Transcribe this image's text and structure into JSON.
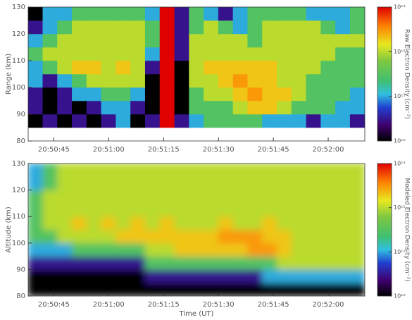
{
  "chart_data": [
    {
      "type": "heatmap",
      "ylabel": "Range (km)",
      "colorbar_label": "Raw Electron Density (cm⁻³)",
      "smooth": false,
      "log_color": true,
      "xlim": [
        75038,
        75130
      ],
      "xticks": [
        {
          "value": 75045,
          "label": "20:50:45"
        },
        {
          "value": 75060,
          "label": "20:51:00"
        },
        {
          "value": 75075,
          "label": "20:51:15"
        },
        {
          "value": 75090,
          "label": "20:51:30"
        },
        {
          "value": 75105,
          "label": "20:51:45"
        },
        {
          "value": 75120,
          "label": "20:52:00"
        }
      ],
      "ylim": [
        80,
        130
      ],
      "yticks": [
        80,
        90,
        100,
        110,
        120,
        130
      ],
      "zlim": [
        10000000000.0,
        10000000000000.0
      ],
      "zticks": [
        {
          "value": 10000000000.0,
          "label": "10¹⁰"
        },
        {
          "value": 100000000000.0,
          "label": "10¹¹"
        },
        {
          "value": 1000000000000.0,
          "label": "10¹²"
        },
        {
          "value": 10000000000000.0,
          "label": "10¹³"
        }
      ],
      "x_edges": [
        75038,
        75042,
        75046,
        75050,
        75054,
        75058,
        75062,
        75066,
        75070,
        75074,
        75078,
        75082,
        75086,
        75090,
        75094,
        75098,
        75102,
        75106,
        75110,
        75114,
        75118,
        75122,
        75126,
        75130
      ],
      "y_edges": [
        85,
        90,
        95,
        100,
        105,
        110,
        115,
        120,
        125,
        130
      ],
      "z": [
        [
          10000000000.0,
          30000000000.0,
          10000000000.0,
          30000000000.0,
          10000000000.0,
          30000000000.0,
          100000000000.0,
          10000000000.0,
          30000000000.0,
          10000000000000.0,
          30000000000.0,
          100000000000.0,
          300000000000.0,
          300000000000.0,
          300000000000.0,
          300000000000.0,
          100000000000.0,
          100000000000.0,
          100000000000.0,
          30000000000.0,
          100000000000.0,
          100000000000.0,
          30000000000.0
        ],
        [
          30000000000.0,
          10000000000.0,
          30000000000.0,
          10000000000.0,
          30000000000.0,
          100000000000.0,
          100000000000.0,
          30000000000.0,
          10000000000.0,
          10000000000000.0,
          10000000000.0,
          300000000000.0,
          300000000000.0,
          300000000000.0,
          1000000000000.0,
          2000000000000.0,
          2000000000000.0,
          1000000000000.0,
          300000000000.0,
          300000000000.0,
          300000000000.0,
          100000000000.0,
          100000000000.0
        ],
        [
          30000000000.0,
          10000000000.0,
          30000000000.0,
          100000000000.0,
          100000000000.0,
          300000000000.0,
          300000000000.0,
          100000000000.0,
          10000000000.0,
          10000000000000.0,
          10000000000.0,
          300000000000.0,
          1000000000000.0,
          1000000000000.0,
          2000000000000.0,
          3000000000000.0,
          2000000000000.0,
          2000000000000.0,
          1000000000000.0,
          300000000000.0,
          300000000000.0,
          300000000000.0,
          100000000000.0
        ],
        [
          100000000000.0,
          30000000000.0,
          100000000000.0,
          300000000000.0,
          1000000000000.0,
          1000000000000.0,
          1000000000000.0,
          1000000000000.0,
          10000000000.0,
          10000000000000.0,
          10000000000.0,
          1000000000000.0,
          1000000000000.0,
          2000000000000.0,
          3000000000000.0,
          2000000000000.0,
          2000000000000.0,
          1000000000000.0,
          1000000000000.0,
          300000000000.0,
          300000000000.0,
          300000000000.0,
          300000000000.0
        ],
        [
          100000000000.0,
          300000000000.0,
          1000000000000.0,
          2000000000000.0,
          2000000000000.0,
          1000000000000.0,
          2000000000000.0,
          1000000000000.0,
          30000000000.0,
          10000000000000.0,
          10000000000.0,
          1000000000000.0,
          2000000000000.0,
          2000000000000.0,
          2000000000000.0,
          2000000000000.0,
          2000000000000.0,
          1000000000000.0,
          1000000000000.0,
          1000000000000.0,
          300000000000.0,
          300000000000.0,
          300000000000.0
        ],
        [
          300000000000.0,
          1000000000000.0,
          1000000000000.0,
          1000000000000.0,
          1000000000000.0,
          1000000000000.0,
          1000000000000.0,
          1000000000000.0,
          100000000000.0,
          10000000000000.0,
          30000000000.0,
          1000000000000.0,
          1000000000000.0,
          1000000000000.0,
          1000000000000.0,
          1000000000000.0,
          1000000000000.0,
          1000000000000.0,
          1000000000000.0,
          1000000000000.0,
          1000000000000.0,
          300000000000.0,
          300000000000.0
        ],
        [
          100000000000.0,
          300000000000.0,
          1000000000000.0,
          1000000000000.0,
          1000000000000.0,
          1000000000000.0,
          1000000000000.0,
          1000000000000.0,
          300000000000.0,
          10000000000000.0,
          30000000000.0,
          1000000000000.0,
          1000000000000.0,
          1000000000000.0,
          1000000000000.0,
          300000000000.0,
          1000000000000.0,
          1000000000000.0,
          1000000000000.0,
          1000000000000.0,
          1000000000000.0,
          1000000000000.0,
          1000000000000.0
        ],
        [
          30000000000.0,
          100000000000.0,
          300000000000.0,
          1000000000000.0,
          1000000000000.0,
          1000000000000.0,
          1000000000000.0,
          1000000000000.0,
          300000000000.0,
          10000000000000.0,
          30000000000.0,
          300000000000.0,
          1000000000000.0,
          300000000000.0,
          100000000000.0,
          300000000000.0,
          1000000000000.0,
          1000000000000.0,
          1000000000000.0,
          1000000000000.0,
          300000000000.0,
          100000000000.0,
          300000000000.0
        ],
        [
          10000000000.0,
          100000000000.0,
          100000000000.0,
          300000000000.0,
          300000000000.0,
          300000000000.0,
          300000000000.0,
          300000000000.0,
          100000000000.0,
          10000000000000.0,
          30000000000.0,
          300000000000.0,
          100000000000.0,
          30000000000.0,
          100000000000.0,
          300000000000.0,
          300000000000.0,
          300000000000.0,
          300000000000.0,
          100000000000.0,
          100000000000.0,
          100000000000.0,
          300000000000.0
        ]
      ]
    },
    {
      "type": "heatmap",
      "xlabel": "Time (UT)",
      "ylabel": "Altitude (km)",
      "colorbar_label": "Modeled Electron Density (cm⁻³)",
      "smooth": true,
      "log_color": true,
      "xlim": [
        75038,
        75130
      ],
      "xticks": [
        {
          "value": 75045,
          "label": "20:50:45"
        },
        {
          "value": 75060,
          "label": "20:51:00"
        },
        {
          "value": 75075,
          "label": "20:51:15"
        },
        {
          "value": 75090,
          "label": "20:51:30"
        },
        {
          "value": 75105,
          "label": "20:51:45"
        },
        {
          "value": 75120,
          "label": "20:52:00"
        }
      ],
      "ylim": [
        80,
        130
      ],
      "yticks": [
        80,
        90,
        100,
        110,
        120,
        130
      ],
      "zlim": [
        10000000000.0,
        10000000000000.0
      ],
      "zticks": [
        {
          "value": 10000000000.0,
          "label": "10¹⁰"
        },
        {
          "value": 100000000000.0,
          "label": "10¹¹"
        },
        {
          "value": 1000000000000.0,
          "label": "10¹²"
        },
        {
          "value": 10000000000000.0,
          "label": "10¹³"
        }
      ],
      "x_edges": [
        75038,
        75042,
        75046,
        75050,
        75054,
        75058,
        75062,
        75066,
        75070,
        75074,
        75078,
        75082,
        75086,
        75090,
        75094,
        75098,
        75102,
        75106,
        75110,
        75114,
        75118,
        75122,
        75126,
        75130
      ],
      "y_edges": [
        80,
        85,
        90,
        95,
        100,
        105,
        110,
        115,
        120,
        125,
        130
      ],
      "z": [
        [
          10000000000.0,
          10000000000.0,
          10000000000.0,
          10000000000.0,
          10000000000.0,
          10000000000.0,
          10000000000.0,
          10000000000.0,
          10000000000.0,
          10000000000.0,
          10000000000.0,
          10000000000.0,
          10000000000.0,
          10000000000.0,
          10000000000.0,
          10000000000.0,
          10000000000.0,
          10000000000.0,
          10000000000.0,
          10000000000.0,
          10000000000.0,
          10000000000.0,
          10000000000.0
        ],
        [
          10000000000.0,
          10000000000.0,
          10000000000.0,
          10000000000.0,
          10000000000.0,
          10000000000.0,
          10000000000.0,
          10000000000.0,
          30000000000.0,
          30000000000.0,
          30000000000.0,
          30000000000.0,
          30000000000.0,
          30000000000.0,
          30000000000.0,
          30000000000.0,
          100000000000.0,
          100000000000.0,
          100000000000.0,
          100000000000.0,
          100000000000.0,
          100000000000.0,
          100000000000.0
        ],
        [
          30000000000.0,
          30000000000.0,
          30000000000.0,
          30000000000.0,
          30000000000.0,
          30000000000.0,
          30000000000.0,
          30000000000.0,
          300000000000.0,
          300000000000.0,
          300000000000.0,
          300000000000.0,
          300000000000.0,
          300000000000.0,
          300000000000.0,
          300000000000.0,
          300000000000.0,
          1000000000000.0,
          1000000000000.0,
          1000000000000.0,
          1000000000000.0,
          1000000000000.0,
          1000000000000.0
        ],
        [
          100000000000.0,
          100000000000.0,
          100000000000.0,
          300000000000.0,
          300000000000.0,
          300000000000.0,
          300000000000.0,
          300000000000.0,
          1000000000000.0,
          1000000000000.0,
          2000000000000.0,
          2000000000000.0,
          2000000000000.0,
          2000000000000.0,
          2000000000000.0,
          3000000000000.0,
          3000000000000.0,
          2000000000000.0,
          1000000000000.0,
          1000000000000.0,
          1000000000000.0,
          1000000000000.0,
          1000000000000.0
        ],
        [
          300000000000.0,
          300000000000.0,
          1000000000000.0,
          1000000000000.0,
          1000000000000.0,
          1000000000000.0,
          2000000000000.0,
          2000000000000.0,
          2000000000000.0,
          2000000000000.0,
          2000000000000.0,
          2000000000000.0,
          2000000000000.0,
          3000000000000.0,
          3000000000000.0,
          3000000000000.0,
          2000000000000.0,
          2000000000000.0,
          1000000000000.0,
          1000000000000.0,
          1000000000000.0,
          1000000000000.0,
          1000000000000.0
        ],
        [
          300000000000.0,
          1000000000000.0,
          1000000000000.0,
          2000000000000.0,
          1000000000000.0,
          2000000000000.0,
          1000000000000.0,
          2000000000000.0,
          1000000000000.0,
          2000000000000.0,
          1000000000000.0,
          1000000000000.0,
          1000000000000.0,
          2000000000000.0,
          1000000000000.0,
          1000000000000.0,
          2000000000000.0,
          1000000000000.0,
          1000000000000.0,
          1000000000000.0,
          1000000000000.0,
          1000000000000.0,
          1000000000000.0
        ],
        [
          300000000000.0,
          1000000000000.0,
          1000000000000.0,
          1000000000000.0,
          1000000000000.0,
          1000000000000.0,
          1000000000000.0,
          1000000000000.0,
          1000000000000.0,
          1000000000000.0,
          1000000000000.0,
          1000000000000.0,
          1000000000000.0,
          1000000000000.0,
          1000000000000.0,
          1000000000000.0,
          1000000000000.0,
          1000000000000.0,
          1000000000000.0,
          1000000000000.0,
          1000000000000.0,
          1000000000000.0,
          1000000000000.0
        ],
        [
          300000000000.0,
          1000000000000.0,
          1000000000000.0,
          1000000000000.0,
          1000000000000.0,
          1000000000000.0,
          1000000000000.0,
          1000000000000.0,
          1000000000000.0,
          1000000000000.0,
          1000000000000.0,
          1000000000000.0,
          1000000000000.0,
          1000000000000.0,
          1000000000000.0,
          1000000000000.0,
          1000000000000.0,
          1000000000000.0,
          1000000000000.0,
          1000000000000.0,
          1000000000000.0,
          1000000000000.0,
          1000000000000.0
        ],
        [
          100000000000.0,
          300000000000.0,
          1000000000000.0,
          1000000000000.0,
          1000000000000.0,
          1000000000000.0,
          1000000000000.0,
          1000000000000.0,
          1000000000000.0,
          1000000000000.0,
          1000000000000.0,
          1000000000000.0,
          1000000000000.0,
          1000000000000.0,
          1000000000000.0,
          1000000000000.0,
          1000000000000.0,
          1000000000000.0,
          1000000000000.0,
          1000000000000.0,
          1000000000000.0,
          1000000000000.0,
          1000000000000.0
        ],
        [
          100000000000.0,
          300000000000.0,
          1000000000000.0,
          1000000000000.0,
          1000000000000.0,
          1000000000000.0,
          1000000000000.0,
          1000000000000.0,
          1000000000000.0,
          1000000000000.0,
          1000000000000.0,
          1000000000000.0,
          1000000000000.0,
          1000000000000.0,
          1000000000000.0,
          1000000000000.0,
          1000000000000.0,
          1000000000000.0,
          1000000000000.0,
          1000000000000.0,
          1000000000000.0,
          1000000000000.0,
          1000000000000.0
        ]
      ]
    }
  ]
}
